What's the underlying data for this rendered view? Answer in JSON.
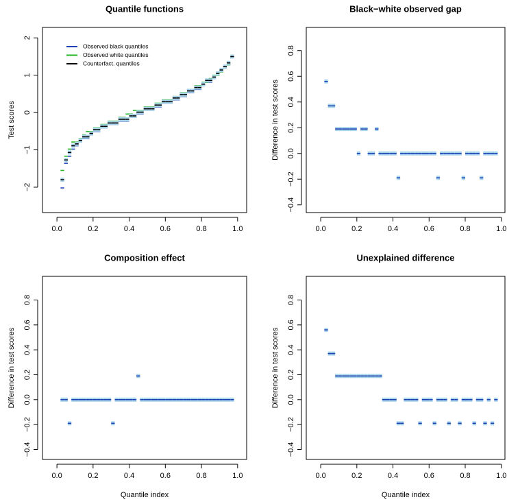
{
  "chart_data": [
    {
      "type": "quantile",
      "title": "Quantile functions",
      "ylabel": "Test scores",
      "x": [
        0.03,
        0.05,
        0.07,
        0.09,
        0.11,
        0.13,
        0.15,
        0.17,
        0.19,
        0.21,
        0.23,
        0.25,
        0.27,
        0.29,
        0.31,
        0.33,
        0.35,
        0.37,
        0.39,
        0.41,
        0.43,
        0.45,
        0.47,
        0.49,
        0.51,
        0.53,
        0.55,
        0.57,
        0.59,
        0.61,
        0.63,
        0.65,
        0.67,
        0.69,
        0.71,
        0.73,
        0.75,
        0.77,
        0.79,
        0.81,
        0.83,
        0.85,
        0.87,
        0.89,
        0.91,
        0.93,
        0.95,
        0.97
      ],
      "series": [
        {
          "name": "Observed black quantiles",
          "color": "#1f3fb4",
          "values": [
            -2.02,
            -1.36,
            -1.17,
            -0.98,
            -0.89,
            -0.79,
            -0.7,
            -0.7,
            -0.6,
            -0.51,
            -0.51,
            -0.41,
            -0.41,
            -0.32,
            -0.32,
            -0.32,
            -0.23,
            -0.23,
            -0.23,
            -0.13,
            -0.13,
            -0.04,
            -0.04,
            0.06,
            0.06,
            0.06,
            0.15,
            0.15,
            0.25,
            0.25,
            0.25,
            0.34,
            0.34,
            0.43,
            0.43,
            0.53,
            0.53,
            0.62,
            0.62,
            0.72,
            0.81,
            0.81,
            0.91,
            1.0,
            1.09,
            1.19,
            1.28,
            1.47
          ]
        },
        {
          "name": "Observed white quantiles",
          "color": "#22b422",
          "values": [
            -1.55,
            -1.17,
            -0.98,
            -0.79,
            -0.79,
            -0.7,
            -0.6,
            -0.51,
            -0.51,
            -0.41,
            -0.41,
            -0.32,
            -0.32,
            -0.23,
            -0.23,
            -0.23,
            -0.13,
            -0.13,
            -0.04,
            -0.04,
            0.06,
            0.06,
            0.06,
            0.15,
            0.15,
            0.15,
            0.25,
            0.25,
            0.34,
            0.34,
            0.34,
            0.43,
            0.43,
            0.53,
            0.53,
            0.62,
            0.62,
            0.72,
            0.72,
            0.81,
            0.81,
            0.91,
            1.0,
            1.0,
            1.09,
            1.19,
            1.28,
            1.47
          ]
        },
        {
          "name": "Counterfact. quantiles",
          "color": "#000000",
          "values": [
            -1.8,
            -1.27,
            -1.07,
            -0.89,
            -0.84,
            -0.75,
            -0.65,
            -0.65,
            -0.56,
            -0.46,
            -0.46,
            -0.37,
            -0.37,
            -0.28,
            -0.28,
            -0.28,
            -0.18,
            -0.18,
            -0.18,
            -0.09,
            -0.09,
            0.01,
            0.01,
            0.1,
            0.1,
            0.1,
            0.2,
            0.2,
            0.29,
            0.29,
            0.29,
            0.39,
            0.39,
            0.48,
            0.48,
            0.58,
            0.58,
            0.67,
            0.67,
            0.76,
            0.86,
            0.86,
            0.95,
            1.05,
            1.14,
            1.23,
            1.33,
            1.5
          ]
        }
      ],
      "band_color": "#a9d6ea",
      "legend": "topleft",
      "xlim": [
        -0.08,
        1.05
      ],
      "ylim": [
        -2.68,
        2.28
      ],
      "xticks": [
        {
          "value": 0,
          "label": "0.0"
        },
        0.2,
        0.4,
        0.6,
        0.8,
        {
          "value": 1,
          "label": "1.0"
        }
      ],
      "yticks": [
        {
          "value": -2,
          "label": "−2"
        },
        {
          "value": -1,
          "label": "−1"
        },
        0,
        1,
        2
      ]
    },
    {
      "type": "difference",
      "title": "Black−white observed gap",
      "ylabel": "Difference in test scores",
      "x": [
        0.03,
        0.05,
        0.07,
        0.09,
        0.11,
        0.13,
        0.15,
        0.17,
        0.19,
        0.21,
        0.23,
        0.25,
        0.27,
        0.29,
        0.31,
        0.33,
        0.35,
        0.37,
        0.39,
        0.41,
        0.43,
        0.45,
        0.47,
        0.49,
        0.51,
        0.53,
        0.55,
        0.57,
        0.59,
        0.61,
        0.63,
        0.65,
        0.67,
        0.69,
        0.71,
        0.73,
        0.75,
        0.77,
        0.79,
        0.81,
        0.83,
        0.85,
        0.87,
        0.89,
        0.91,
        0.93,
        0.95,
        0.97
      ],
      "values": [
        0.56,
        0.37,
        0.37,
        0.19,
        0.19,
        0.19,
        0.19,
        0.19,
        0.19,
        0,
        0.19,
        0.19,
        0,
        0,
        0.19,
        0,
        0,
        0,
        0,
        0,
        -0.19,
        0,
        0,
        0,
        0,
        0,
        0,
        0,
        0,
        0,
        0,
        -0.19,
        0,
        0,
        0,
        0,
        0,
        0,
        -0.19,
        0,
        0,
        0,
        0,
        -0.19,
        0,
        0,
        0,
        0
      ],
      "color": "#1f3fb4",
      "band_color": "#a9d6ea",
      "xlim": [
        -0.08,
        1.02
      ],
      "ylim": [
        -0.46,
        0.98
      ],
      "xticks": [
        {
          "value": 0,
          "label": "0.0"
        },
        0.2,
        0.4,
        0.6,
        0.8,
        {
          "value": 1,
          "label": "1.0"
        }
      ],
      "yticks": [
        {
          "value": -0.4,
          "label": "−0.4"
        },
        {
          "value": -0.2,
          "label": "−0.2"
        },
        {
          "value": 0,
          "label": "0.0"
        },
        0.2,
        0.4,
        0.6,
        0.8
      ]
    },
    {
      "type": "difference",
      "title": "Composition effect",
      "ylabel": "Difference in test scores",
      "xlabel": "Quantile index",
      "x": [
        0.03,
        0.05,
        0.07,
        0.09,
        0.11,
        0.13,
        0.15,
        0.17,
        0.19,
        0.21,
        0.23,
        0.25,
        0.27,
        0.29,
        0.31,
        0.33,
        0.35,
        0.37,
        0.39,
        0.41,
        0.43,
        0.45,
        0.47,
        0.49,
        0.51,
        0.53,
        0.55,
        0.57,
        0.59,
        0.61,
        0.63,
        0.65,
        0.67,
        0.69,
        0.71,
        0.73,
        0.75,
        0.77,
        0.79,
        0.81,
        0.83,
        0.85,
        0.87,
        0.89,
        0.91,
        0.93,
        0.95,
        0.97
      ],
      "values": [
        0,
        0,
        -0.19,
        0,
        0,
        0,
        0,
        0,
        0,
        0,
        0,
        0,
        0,
        0,
        -0.19,
        0,
        0,
        0,
        0,
        0,
        0,
        0.19,
        0,
        0,
        0,
        0,
        0,
        0,
        0,
        0,
        0,
        0,
        0,
        0,
        0,
        0,
        0,
        0,
        0,
        0,
        0,
        0,
        0,
        0,
        0,
        0,
        0,
        0
      ],
      "color": "#1f3fb4",
      "band_color": "#a9d6ea",
      "xlim": [
        -0.08,
        1.05
      ],
      "ylim": [
        -0.48,
        0.99
      ],
      "xticks": [
        {
          "value": 0,
          "label": "0.0"
        },
        0.2,
        0.4,
        0.6,
        0.8,
        {
          "value": 1,
          "label": "1.0"
        }
      ],
      "yticks": [
        {
          "value": -0.4,
          "label": "−0.4"
        },
        {
          "value": -0.2,
          "label": "−0.2"
        },
        {
          "value": 0,
          "label": "0.0"
        },
        0.2,
        0.4,
        0.6,
        0.8
      ]
    },
    {
      "type": "difference",
      "title": "Unexplained difference",
      "ylabel": "Difference in test scores",
      "xlabel": "Quantile index",
      "x": [
        0.03,
        0.05,
        0.07,
        0.09,
        0.11,
        0.13,
        0.15,
        0.17,
        0.19,
        0.21,
        0.23,
        0.25,
        0.27,
        0.29,
        0.31,
        0.33,
        0.35,
        0.37,
        0.39,
        0.41,
        0.43,
        0.45,
        0.47,
        0.49,
        0.51,
        0.53,
        0.55,
        0.57,
        0.59,
        0.61,
        0.63,
        0.65,
        0.67,
        0.69,
        0.71,
        0.73,
        0.75,
        0.77,
        0.79,
        0.81,
        0.83,
        0.85,
        0.87,
        0.89,
        0.91,
        0.93,
        0.95,
        0.97
      ],
      "values": [
        0.56,
        0.37,
        0.37,
        0.19,
        0.19,
        0.19,
        0.19,
        0.19,
        0.19,
        0.19,
        0.19,
        0.19,
        0.19,
        0.19,
        0.19,
        0.19,
        0,
        0,
        0,
        0,
        -0.19,
        -0.19,
        0,
        0,
        0,
        0,
        -0.19,
        0,
        0,
        0,
        -0.19,
        0,
        0,
        0,
        -0.19,
        0,
        0,
        -0.19,
        0,
        0,
        0,
        -0.19,
        0,
        0,
        -0.19,
        0,
        -0.19,
        0
      ],
      "color": "#1f3fb4",
      "band_color": "#a9d6ea",
      "xlim": [
        -0.08,
        1.02
      ],
      "ylim": [
        -0.48,
        0.99
      ],
      "xticks": [
        {
          "value": 0,
          "label": "0.0"
        },
        0.2,
        0.4,
        0.6,
        0.8,
        {
          "value": 1,
          "label": "1.0"
        }
      ],
      "yticks": [
        {
          "value": -0.4,
          "label": "−0.4"
        },
        {
          "value": -0.2,
          "label": "−0.2"
        },
        {
          "value": 0,
          "label": "0.0"
        },
        0.2,
        0.4,
        0.6,
        0.8
      ]
    }
  ]
}
